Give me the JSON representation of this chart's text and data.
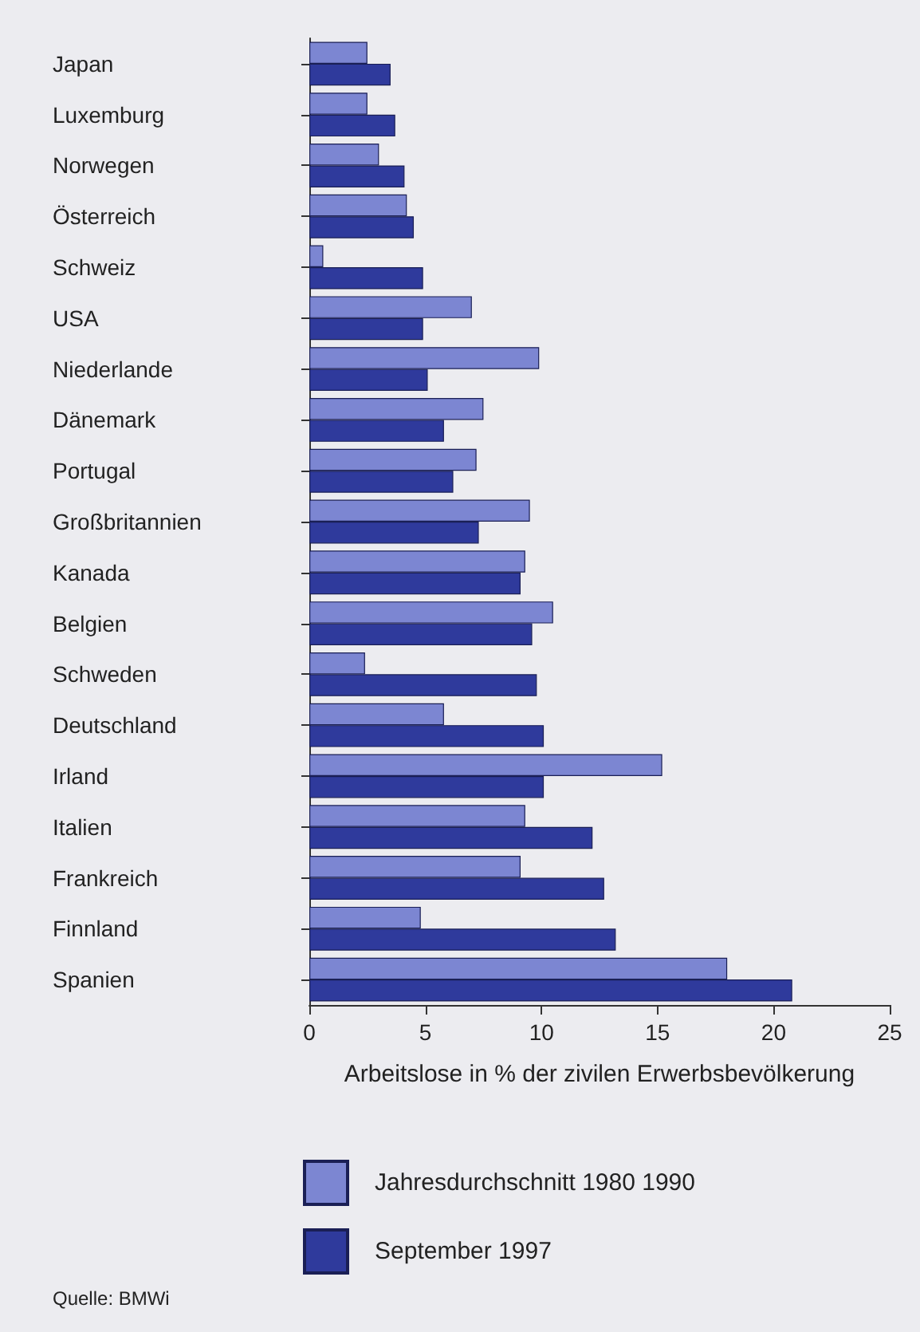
{
  "chart_data": {
    "type": "bar",
    "orientation": "horizontal",
    "xlabel": "Arbeitslose in % der zivilen Erwerbsbevölkerung",
    "categories": [
      "Japan",
      "Luxemburg",
      "Norwegen",
      "Österreich",
      "Schweiz",
      "USA",
      "Niederlande",
      "Dänemark",
      "Portugal",
      "Großbritannien",
      "Kanada",
      "Belgien",
      "Schweden",
      "Deutschland",
      "Irland",
      "Italien",
      "Frankreich",
      "Finnland",
      "Spanien"
    ],
    "series": [
      {
        "name": "Jahresdurchschnitt 1980 1990",
        "color": "#7c86d2",
        "values": [
          2.5,
          2.5,
          3.0,
          4.2,
          0.6,
          7.0,
          9.9,
          7.5,
          7.2,
          9.5,
          9.3,
          10.5,
          2.4,
          5.8,
          15.2,
          9.3,
          9.1,
          4.8,
          18.0
        ]
      },
      {
        "name": "September 1997",
        "color": "#2f3a9c",
        "values": [
          3.5,
          3.7,
          4.1,
          4.5,
          4.9,
          4.9,
          5.1,
          5.8,
          6.2,
          7.3,
          9.1,
          9.6,
          9.8,
          10.1,
          10.1,
          12.2,
          12.7,
          13.2,
          20.8
        ]
      }
    ],
    "xlim": [
      0,
      25
    ],
    "xticks": [
      0,
      5,
      10,
      15,
      20,
      25
    ],
    "grid": false,
    "legend": "bottom",
    "annotations": [
      "Quelle: BMWi"
    ]
  }
}
